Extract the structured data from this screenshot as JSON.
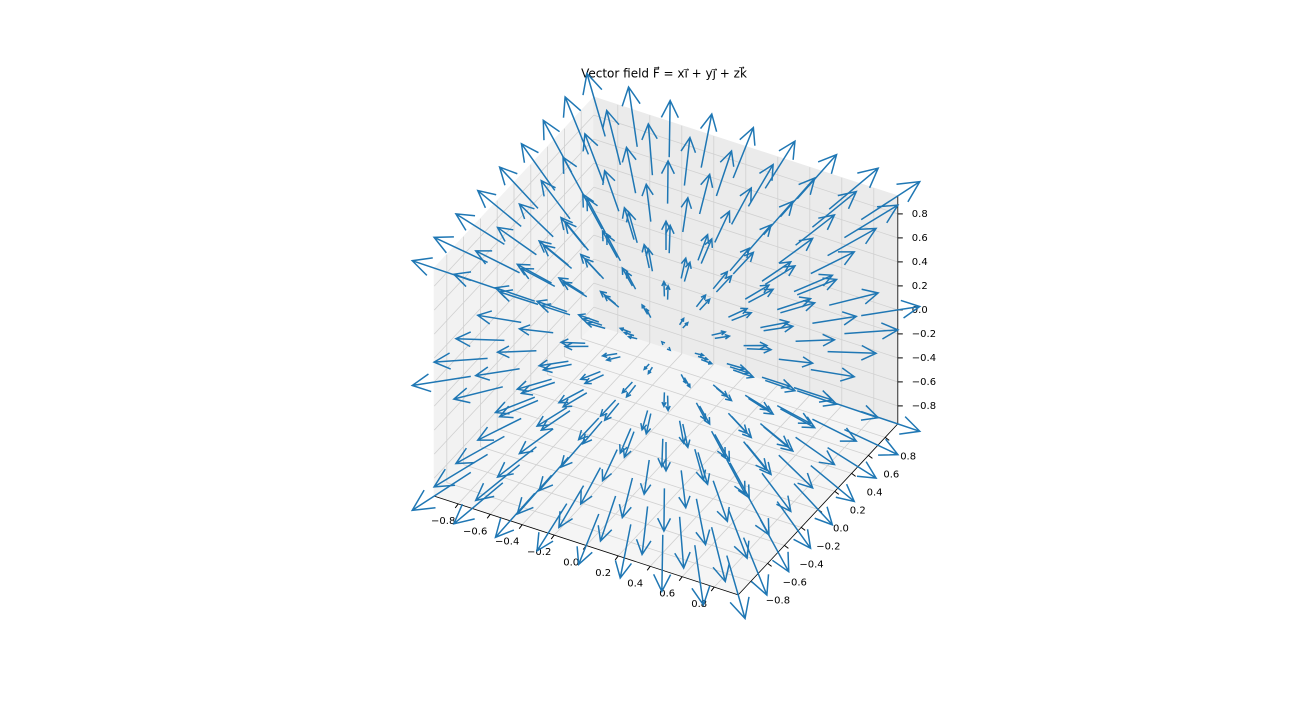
{
  "chart_data": {
    "type": "quiver3d",
    "title": "Vector field F⃗ = xi⃗ + yj⃗ + zk⃗",
    "x": [
      -0.8,
      -0.6,
      -0.4,
      -0.2,
      0,
      0.2,
      0.4,
      0.6,
      0.8
    ],
    "y": [
      -0.8,
      -0.6,
      -0.4,
      -0.2,
      0,
      0.2,
      0.4,
      0.6,
      0.8
    ],
    "z": [
      -0.8,
      0,
      0.8
    ],
    "color": "#1f77b4",
    "xlim": [
      -0.95,
      0.95
    ],
    "ylim": [
      -0.95,
      0.95
    ],
    "zlim": [
      -0.95,
      0.95
    ],
    "xticks": [
      {
        "value": -0.8,
        "label": "−0.8"
      },
      {
        "value": -0.6,
        "label": "−0.6"
      },
      {
        "value": -0.4,
        "label": "−0.4"
      },
      {
        "value": -0.2,
        "label": "−0.2"
      },
      {
        "value": 0,
        "label": "0.0"
      },
      0.2,
      0.4,
      0.6,
      0.8
    ],
    "yticks": [
      {
        "value": -0.8,
        "label": "−0.8"
      },
      {
        "value": -0.6,
        "label": "−0.6"
      },
      {
        "value": -0.4,
        "label": "−0.4"
      },
      {
        "value": -0.2,
        "label": "−0.2"
      },
      {
        "value": 0,
        "label": "0.0"
      },
      0.2,
      0.4,
      0.6,
      0.8
    ],
    "zticks": [
      {
        "value": -0.8,
        "label": "−0.8"
      },
      {
        "value": -0.6,
        "label": "−0.6"
      },
      {
        "value": -0.4,
        "label": "−0.4"
      },
      {
        "value": -0.2,
        "label": "−0.2"
      },
      {
        "value": 0,
        "label": "0.0"
      },
      0.2,
      0.4,
      0.6,
      0.8
    ],
    "grid": true
  }
}
